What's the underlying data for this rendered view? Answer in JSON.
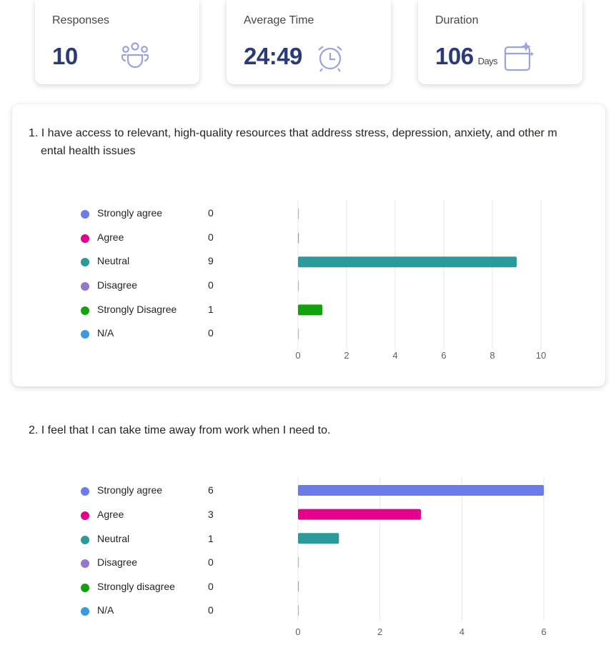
{
  "stats": {
    "responses": {
      "label": "Responses",
      "value": "10",
      "icon": "people-group-icon"
    },
    "average_time": {
      "label": "Average Time",
      "value": "24:49",
      "icon": "alarm-clock-icon"
    },
    "duration": {
      "label": "Duration",
      "value": "106",
      "unit": "Days",
      "icon": "calendar-sparkle-icon"
    }
  },
  "questions": [
    {
      "title_line1": "1. I have access to relevant, high-quality resources that address stress, depression, anxiety, and other m",
      "title_line2": "ental health issues",
      "options": [
        {
          "label": "Strongly agree",
          "count": "0",
          "color": "#6b7be8"
        },
        {
          "label": "Agree",
          "count": "0",
          "color": "#e3008c"
        },
        {
          "label": "Neutral",
          "count": "9",
          "color": "#2b9a9a"
        },
        {
          "label": "Disagree",
          "count": "0",
          "color": "#9479c8"
        },
        {
          "label": "Strongly Disagree",
          "count": "1",
          "color": "#13a10e"
        },
        {
          "label": "N/A",
          "count": "0",
          "color": "#3b99e0"
        }
      ]
    },
    {
      "title_line1": "2. I feel that I can take time away from work when I need to.",
      "options": [
        {
          "label": "Strongly agree",
          "count": "6",
          "color": "#6b7be8"
        },
        {
          "label": "Agree",
          "count": "3",
          "color": "#e3008c"
        },
        {
          "label": "Neutral",
          "count": "1",
          "color": "#2b9a9a"
        },
        {
          "label": "Disagree",
          "count": "0",
          "color": "#9479c8"
        },
        {
          "label": "Strongly disagree",
          "count": "0",
          "color": "#13a10e"
        },
        {
          "label": "N/A",
          "count": "0",
          "color": "#3b99e0"
        }
      ]
    }
  ],
  "chart_data": [
    {
      "type": "bar",
      "categories": [
        "Strongly agree",
        "Agree",
        "Neutral",
        "Disagree",
        "Strongly Disagree",
        "N/A"
      ],
      "values": [
        0,
        0,
        9,
        0,
        1,
        0
      ],
      "xlim": [
        0,
        10
      ],
      "ticks": [
        "0",
        "2",
        "4",
        "6",
        "8",
        "10"
      ],
      "grid": true
    },
    {
      "type": "bar",
      "categories": [
        "Strongly agree",
        "Agree",
        "Neutral",
        "Disagree",
        "Strongly disagree",
        "N/A"
      ],
      "values": [
        6,
        3,
        1,
        0,
        0,
        0
      ],
      "xlim": [
        0,
        6
      ],
      "ticks": [
        "0",
        "2",
        "4",
        "6"
      ],
      "grid": true
    }
  ]
}
